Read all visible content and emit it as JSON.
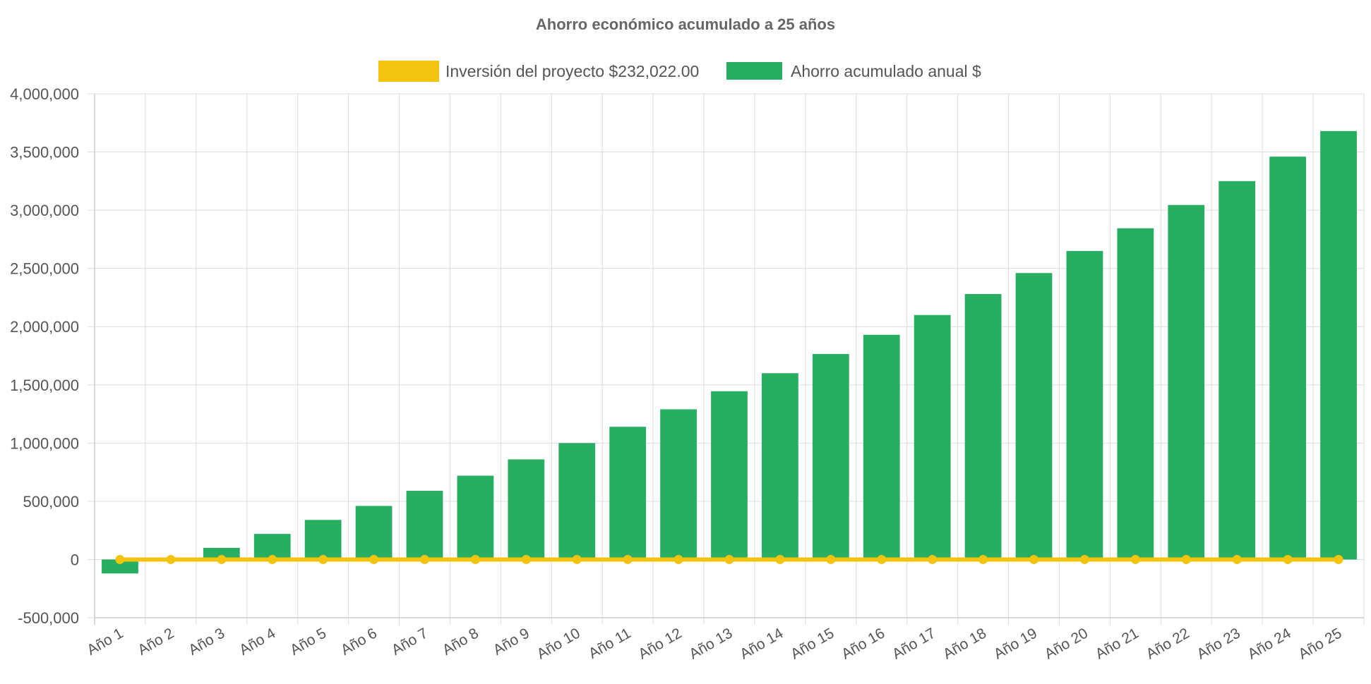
{
  "chart_data": {
    "type": "bar",
    "title": "Ahorro económico acumulado a 25 años",
    "categories": [
      "Año 1",
      "Año 2",
      "Año 3",
      "Año 4",
      "Año 5",
      "Año 6",
      "Año 7",
      "Año 8",
      "Año 9",
      "Año 10",
      "Año 11",
      "Año 12",
      "Año 13",
      "Año 14",
      "Año 15",
      "Año 16",
      "Año 17",
      "Año 18",
      "Año 19",
      "Año 20",
      "Año 21",
      "Año 22",
      "Año 23",
      "Año 24",
      "Año 25"
    ],
    "ylim": [
      -500000,
      4000000
    ],
    "yticks": [
      4000000,
      3500000,
      3000000,
      2500000,
      2000000,
      1500000,
      1000000,
      500000,
      0,
      -500000
    ],
    "ytick_labels": [
      "4,000,000",
      "3,500,000",
      "3,000,000",
      "2,500,000",
      "2,000,000",
      "1,500,000",
      "1,000,000",
      "500,000",
      "0",
      "-500,000"
    ],
    "grid": true,
    "legend_position": "top-center",
    "series": [
      {
        "name": "Inversión del proyecto $232,022.00",
        "type": "line",
        "color": "#f2c40f",
        "values": [
          0,
          0,
          0,
          0,
          0,
          0,
          0,
          0,
          0,
          0,
          0,
          0,
          0,
          0,
          0,
          0,
          0,
          0,
          0,
          0,
          0,
          0,
          0,
          0,
          0
        ]
      },
      {
        "name": "Ahorro acumulado anual $",
        "type": "bar",
        "color": "#27ae60",
        "values": [
          -120000,
          5000,
          100000,
          220000,
          340000,
          460000,
          590000,
          720000,
          860000,
          1000000,
          1140000,
          1290000,
          1445000,
          1600000,
          1765000,
          1930000,
          2100000,
          2280000,
          2460000,
          2650000,
          2845000,
          3045000,
          3250000,
          3460000,
          3680000
        ]
      }
    ]
  }
}
